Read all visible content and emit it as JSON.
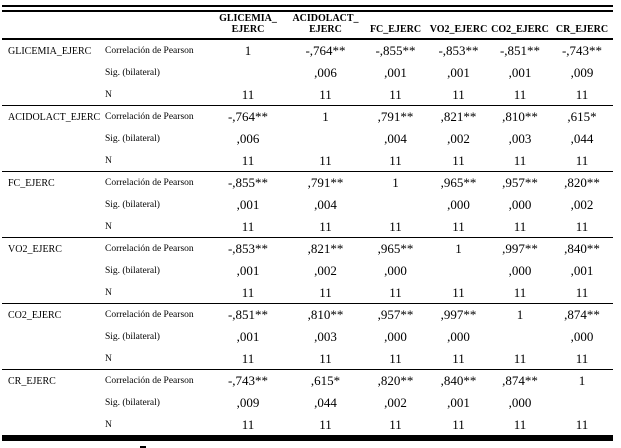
{
  "table": {
    "column_headers": [
      {
        "line1": "GLICEMIA_",
        "line2": "EJERC"
      },
      {
        "line1": "ACIDOLACT_",
        "line2": "EJERC"
      },
      {
        "line1": "",
        "line2": "FC_EJERC"
      },
      {
        "line1": "",
        "line2": "VO2_EJERC"
      },
      {
        "line1": "",
        "line2": "CO2_EJERC"
      },
      {
        "line1": "",
        "line2": "CR_EJERC"
      }
    ],
    "stat_labels": {
      "pearson": "Correlación de Pearson",
      "sig": "Sig. (bilateral)",
      "n": "N"
    },
    "groups": [
      {
        "label": "GLICEMIA_EJERC",
        "pearson": [
          "1",
          "-,764**",
          "-,855**",
          "-,853**",
          "-,851**",
          "-,743**"
        ],
        "sig": [
          "",
          ",006",
          ",001",
          ",001",
          ",001",
          ",009"
        ],
        "n": [
          "11",
          "11",
          "11",
          "11",
          "11",
          "11"
        ]
      },
      {
        "label": "ACIDOLACT_EJERC",
        "pearson": [
          "-,764**",
          "1",
          ",791**",
          ",821**",
          ",810**",
          ",615*"
        ],
        "sig": [
          ",006",
          "",
          ",004",
          ",002",
          ",003",
          ",044"
        ],
        "n": [
          "11",
          "11",
          "11",
          "11",
          "11",
          "11"
        ]
      },
      {
        "label": "FC_EJERC",
        "pearson": [
          "-,855**",
          ",791**",
          "1",
          ",965**",
          ",957**",
          ",820**"
        ],
        "sig": [
          ",001",
          ",004",
          "",
          ",000",
          ",000",
          ",002"
        ],
        "n": [
          "11",
          "11",
          "11",
          "11",
          "11",
          "11"
        ]
      },
      {
        "label": "VO2_EJERC",
        "pearson": [
          "-,853**",
          ",821**",
          ",965**",
          "1",
          ",997**",
          ",840**"
        ],
        "sig": [
          ",001",
          ",002",
          ",000",
          "",
          ",000",
          ",001"
        ],
        "n": [
          "11",
          "11",
          "11",
          "11",
          "11",
          "11"
        ]
      },
      {
        "label": "CO2_EJERC",
        "pearson": [
          "-,851**",
          ",810**",
          ",957**",
          ",997**",
          "1",
          ",874**"
        ],
        "sig": [
          ",001",
          ",003",
          ",000",
          ",000",
          "",
          ",000"
        ],
        "n": [
          "11",
          "11",
          "11",
          "11",
          "11",
          "11"
        ]
      },
      {
        "label": "CR_EJERC",
        "pearson": [
          "-,743**",
          ",615*",
          ",820**",
          ",840**",
          ",874**",
          "1"
        ],
        "sig": [
          ",009",
          ",044",
          ",002",
          ",001",
          ",000",
          ""
        ],
        "n": [
          "11",
          "11",
          "11",
          "11",
          "11",
          "11"
        ]
      }
    ]
  },
  "colors": {
    "text": "#000000",
    "rule": "#000000",
    "background": "#ffffff"
  }
}
